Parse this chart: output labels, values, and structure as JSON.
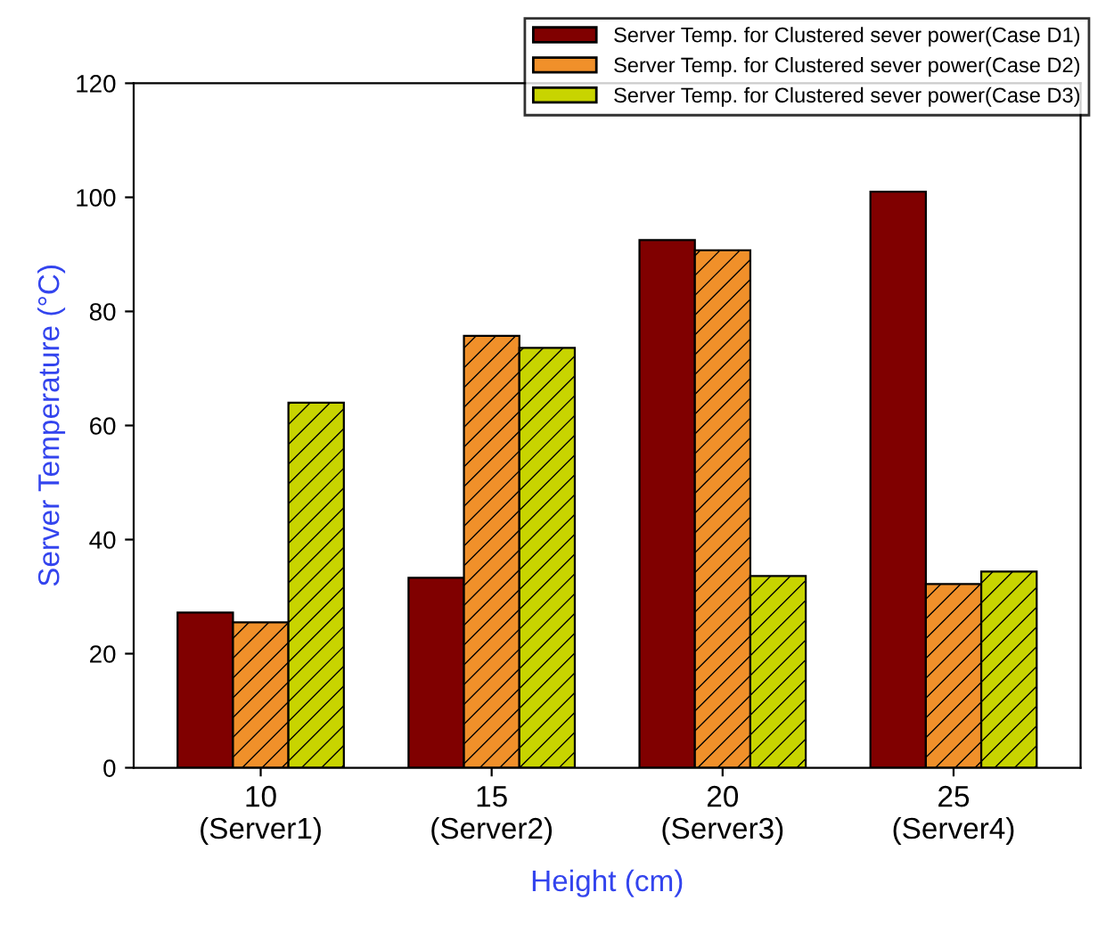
{
  "chart_data": {
    "type": "bar",
    "xlabel": "Height (cm)",
    "ylabel": "Server Temperature (°C)",
    "categories": [
      "10\n(Server1)",
      "15\n(Server2)",
      "20\n(Server3)",
      "25\n(Server4)"
    ],
    "series": [
      {
        "name": "Server Temp. for Clustered sever power(Case D1)",
        "color": "#800000",
        "values": [
          27.2,
          33.3,
          92.5,
          101
        ]
      },
      {
        "name": "Server Temp. for Clustered sever power(Case D2)",
        "color": "#f0902a",
        "values": [
          25.5,
          75.7,
          90.7,
          32.2
        ]
      },
      {
        "name": "Server Temp. for Clustered sever power(Case D3)",
        "color": "#c8d400",
        "values": [
          64,
          73.6,
          33.6,
          34.4
        ]
      }
    ],
    "ylim": [
      0,
      120
    ],
    "yticks": [
      0,
      20,
      40,
      60,
      80,
      100,
      120
    ],
    "grid": false,
    "legend": "top right"
  }
}
